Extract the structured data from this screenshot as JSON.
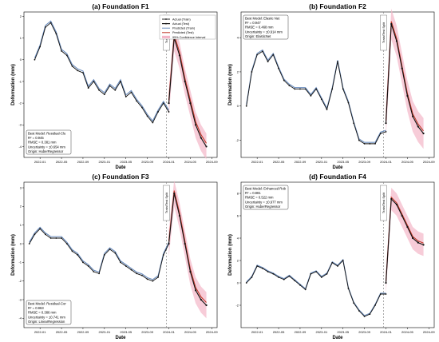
{
  "chart_data": [
    {
      "type": "line",
      "title": "(a) Foundation F1",
      "xlabel": "Date",
      "ylabel": "Deformation (mm)",
      "x_ticks": [
        "2022-01",
        "2022-05",
        "2022-09",
        "2023-01",
        "2023-05",
        "2023-09",
        "2024-01",
        "2024-05",
        "2024-09"
      ],
      "ylim": [
        -4.5,
        2.2
      ],
      "y_ticks": [
        -4,
        -3,
        -2,
        -1,
        0,
        1,
        2
      ],
      "split_label": "Train/Test Split",
      "split_x": "2024-01",
      "legend": [
        "Actual (Train)",
        "Actual (Test)",
        "Predicted (Train)",
        "Predicted (Test)",
        "95% Confidence Interval"
      ],
      "info_box": [
        "Best Model: Residual-Clu",
        "R² = 0.945",
        "RMSE = 0.381 mm",
        "Uncertainty = ±0.654 mm",
        "Origin: HuberRegressor"
      ],
      "train": [
        [
          "2021-12",
          0.0
        ],
        [
          "2022-01",
          0.6
        ],
        [
          "2022-02",
          1.5
        ],
        [
          "2022-03",
          1.7
        ],
        [
          "2022-04",
          1.2
        ],
        [
          "2022-05",
          0.4
        ],
        [
          "2022-06",
          0.2
        ],
        [
          "2022-07",
          -0.3
        ],
        [
          "2022-08",
          -0.5
        ],
        [
          "2022-09",
          -0.6
        ],
        [
          "2022-10",
          -1.3
        ],
        [
          "2022-11",
          -1.0
        ],
        [
          "2022-12",
          -1.4
        ],
        [
          "2023-01",
          -1.6
        ],
        [
          "2023-02",
          -1.2
        ],
        [
          "2023-03",
          -1.4
        ],
        [
          "2023-04",
          -1.0
        ],
        [
          "2023-05",
          -1.7
        ],
        [
          "2023-06",
          -1.5
        ],
        [
          "2023-07",
          -1.9
        ],
        [
          "2023-08",
          -2.2
        ],
        [
          "2023-09",
          -2.6
        ],
        [
          "2023-10",
          -2.9
        ],
        [
          "2023-11",
          -2.4
        ],
        [
          "2023-12",
          -2.0
        ],
        [
          "2024-01",
          -2.4
        ]
      ],
      "test": [
        [
          "2024-01",
          -2.0
        ],
        [
          "2024-02",
          1.0
        ],
        [
          "2024-03",
          0.2
        ],
        [
          "2024-04",
          -1.0
        ],
        [
          "2024-05",
          -2.0
        ],
        [
          "2024-06",
          -3.0
        ],
        [
          "2024-07",
          -3.6
        ],
        [
          "2024-08",
          -4.0
        ]
      ],
      "ci_width": 0.6
    },
    {
      "type": "line",
      "title": "(b) Foundation F2",
      "xlabel": "Date",
      "ylabel": "Deformation (mm)",
      "x_ticks": [
        "2022-01",
        "2022-05",
        "2022-09",
        "2023-01",
        "2023-05",
        "2023-09",
        "2024-01",
        "2024-05",
        "2024-09"
      ],
      "ylim": [
        -3.0,
        5.5
      ],
      "y_ticks": [
        -2,
        0,
        2,
        4
      ],
      "split_label": "Train/Test Split",
      "split_x": "2024-01",
      "info_box": [
        "Best Model: Elastic Net",
        "R² = 0.947",
        "RMSE = 0.468 mm",
        "Uncertainty = ±0.914 mm",
        "Origin: ElasticNet"
      ],
      "train": [
        [
          "2021-11",
          0.0
        ],
        [
          "2021-12",
          2.0
        ],
        [
          "2022-01",
          3.0
        ],
        [
          "2022-02",
          3.2
        ],
        [
          "2022-03",
          2.6
        ],
        [
          "2022-04",
          3.0
        ],
        [
          "2022-05",
          2.2
        ],
        [
          "2022-06",
          1.5
        ],
        [
          "2022-07",
          1.2
        ],
        [
          "2022-08",
          1.0
        ],
        [
          "2022-09",
          1.0
        ],
        [
          "2022-10",
          1.0
        ],
        [
          "2022-11",
          0.6
        ],
        [
          "2022-12",
          1.0
        ],
        [
          "2023-01",
          0.4
        ],
        [
          "2023-02",
          -0.2
        ],
        [
          "2023-03",
          1.0
        ],
        [
          "2023-04",
          2.6
        ],
        [
          "2023-05",
          1.0
        ],
        [
          "2023-06",
          0.2
        ],
        [
          "2023-07",
          -1.0
        ],
        [
          "2023-08",
          -2.0
        ],
        [
          "2023-09",
          -2.2
        ],
        [
          "2023-10",
          -2.2
        ],
        [
          "2023-11",
          -2.2
        ],
        [
          "2023-12",
          -1.6
        ],
        [
          "2024-01",
          -1.5
        ]
      ],
      "test": [
        [
          "2024-01",
          -1.0
        ],
        [
          "2024-02",
          4.8
        ],
        [
          "2024-03",
          3.8
        ],
        [
          "2024-04",
          2.2
        ],
        [
          "2024-05",
          0.6
        ],
        [
          "2024-06",
          -0.6
        ],
        [
          "2024-07",
          -1.2
        ],
        [
          "2024-08",
          -1.6
        ]
      ],
      "ci_width": 0.9
    },
    {
      "type": "line",
      "title": "(c) Foundation F3",
      "xlabel": "Date",
      "ylabel": "Deformation (mm)",
      "x_ticks": [
        "2022-01",
        "2022-05",
        "2022-09",
        "2023-01",
        "2023-05",
        "2023-09",
        "2024-01",
        "2024-05",
        "2024-09"
      ],
      "ylim": [
        -4.5,
        3.3
      ],
      "y_ticks": [
        -4,
        -3,
        -2,
        -1,
        0,
        1,
        2,
        3
      ],
      "split_label": "Train/Test Split",
      "split_x": "2024-01",
      "info_box": [
        "Best Model: Residual-Cor",
        "R² = 0.963",
        "RMSE = 0.386 mm",
        "Uncertainty = ±0.741 mm",
        "Origin: LinearRegression"
      ],
      "train": [
        [
          "2021-11",
          0.0
        ],
        [
          "2021-12",
          0.5
        ],
        [
          "2022-01",
          0.8
        ],
        [
          "2022-02",
          0.5
        ],
        [
          "2022-03",
          0.3
        ],
        [
          "2022-04",
          0.3
        ],
        [
          "2022-05",
          0.3
        ],
        [
          "2022-06",
          0.0
        ],
        [
          "2022-07",
          -0.4
        ],
        [
          "2022-08",
          -0.6
        ],
        [
          "2022-09",
          -1.0
        ],
        [
          "2022-10",
          -1.2
        ],
        [
          "2022-11",
          -1.5
        ],
        [
          "2022-12",
          -1.6
        ],
        [
          "2023-01",
          -0.6
        ],
        [
          "2023-02",
          -0.3
        ],
        [
          "2023-03",
          -0.5
        ],
        [
          "2023-04",
          -1.0
        ],
        [
          "2023-05",
          -1.2
        ],
        [
          "2023-06",
          -1.4
        ],
        [
          "2023-07",
          -1.6
        ],
        [
          "2023-08",
          -1.7
        ],
        [
          "2023-09",
          -1.9
        ],
        [
          "2023-10",
          -2.0
        ],
        [
          "2023-11",
          -1.8
        ],
        [
          "2023-12",
          -0.6
        ],
        [
          "2024-01",
          0.0
        ]
      ],
      "test": [
        [
          "2024-01",
          0.0
        ],
        [
          "2024-02",
          2.7
        ],
        [
          "2024-03",
          1.5
        ],
        [
          "2024-04",
          0.0
        ],
        [
          "2024-05",
          -1.5
        ],
        [
          "2024-06",
          -2.5
        ],
        [
          "2024-07",
          -3.0
        ],
        [
          "2024-08",
          -3.3
        ]
      ],
      "ci_width": 0.7
    },
    {
      "type": "line",
      "title": "(d) Foundation F4",
      "xlabel": "Date",
      "ylabel": "Deformation (mm)",
      "x_ticks": [
        "2022-01",
        "2022-05",
        "2022-09",
        "2023-01",
        "2023-05",
        "2023-09",
        "2024-01",
        "2024-05",
        "2024-09"
      ],
      "ylim": [
        -4.0,
        9.0
      ],
      "y_ticks": [
        -2,
        0,
        2,
        4,
        6,
        8
      ],
      "split_label": "Train/Test Split",
      "split_x": "2024-01",
      "info_box": [
        "Best Model: Enhanced Rob",
        "R² = 0.881",
        "RMSE = 0.522 mm",
        "Uncertainty = ±0.977 mm",
        "Origin: HuberRegressor"
      ],
      "train": [
        [
          "2021-11",
          0.0
        ],
        [
          "2021-12",
          0.5
        ],
        [
          "2022-01",
          1.5
        ],
        [
          "2022-02",
          1.3
        ],
        [
          "2022-03",
          1.0
        ],
        [
          "2022-04",
          0.8
        ],
        [
          "2022-05",
          0.5
        ],
        [
          "2022-06",
          0.3
        ],
        [
          "2022-07",
          0.6
        ],
        [
          "2022-08",
          0.2
        ],
        [
          "2022-09",
          -0.2
        ],
        [
          "2022-10",
          -0.6
        ],
        [
          "2022-11",
          0.8
        ],
        [
          "2022-12",
          1.0
        ],
        [
          "2023-01",
          0.5
        ],
        [
          "2023-02",
          0.8
        ],
        [
          "2023-03",
          1.8
        ],
        [
          "2023-04",
          1.5
        ],
        [
          "2023-05",
          2.0
        ],
        [
          "2023-06",
          -0.5
        ],
        [
          "2023-07",
          -1.8
        ],
        [
          "2023-08",
          -2.5
        ],
        [
          "2023-09",
          -3.0
        ],
        [
          "2023-10",
          -2.8
        ],
        [
          "2023-11",
          -2.0
        ],
        [
          "2023-12",
          -1.0
        ],
        [
          "2024-01",
          -1.0
        ]
      ],
      "test": [
        [
          "2024-01",
          0.0
        ],
        [
          "2024-02",
          7.5
        ],
        [
          "2024-03",
          7.0
        ],
        [
          "2024-04",
          6.0
        ],
        [
          "2024-05",
          5.0
        ],
        [
          "2024-06",
          4.0
        ],
        [
          "2024-07",
          3.6
        ],
        [
          "2024-08",
          3.4
        ]
      ],
      "ci_width": 1.0
    }
  ],
  "colors": {
    "actual": "#111111",
    "pred_train": "#6c8ebf",
    "pred_test": "#c0392b",
    "ci": "#f4b6c8",
    "split": "#888888"
  }
}
